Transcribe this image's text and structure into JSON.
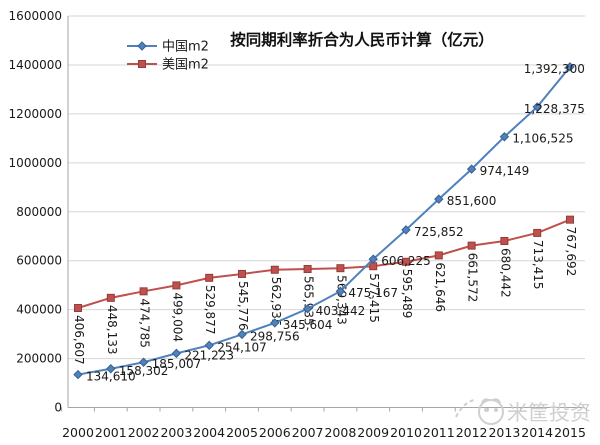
{
  "title": "按同期利率折合为人民币计算（亿元）",
  "watermark": {
    "text": "米筐投资",
    "logo": "panda-face-logo",
    "color": "#cbcbcb"
  },
  "axis": {
    "x_labels": [
      "2000",
      "2001",
      "2002",
      "2003",
      "2004",
      "2005",
      "2006",
      "2007",
      "2008",
      "2009",
      "2010",
      "2011",
      "2012",
      "2013",
      "2014",
      "2015"
    ],
    "y_tick_labels": [
      "0",
      "200000",
      "400000",
      "600000",
      "800000",
      "1000000",
      "1200000",
      "1400000",
      "1600000"
    ]
  },
  "legend": {
    "items": [
      {
        "label": "中国m2"
      },
      {
        "label": "美国m2"
      }
    ]
  },
  "chart_data": {
    "type": "line",
    "x": [
      2000,
      2001,
      2002,
      2003,
      2004,
      2005,
      2006,
      2007,
      2008,
      2009,
      2010,
      2011,
      2012,
      2013,
      2014,
      2015
    ],
    "series": [
      {
        "name": "中国m2",
        "color": "#4F81BD",
        "edge": "#39618f",
        "marker": "diamond",
        "label_orientation": "horizontal",
        "values": [
          134610,
          158302,
          185007,
          221223,
          254107,
          298756,
          345604,
          403442,
          475167,
          606225,
          725852,
          851600,
          974149,
          1106525,
          1228375,
          1392300
        ]
      },
      {
        "name": "美国m2",
        "color": "#C0504D",
        "edge": "#943c3a",
        "marker": "square",
        "label_orientation": "vertical",
        "values": [
          406607,
          448133,
          474785,
          499004,
          529877,
          545776,
          562935,
          565935,
          569343,
          577415,
          595489,
          621646,
          661572,
          680442,
          713415,
          767692
        ]
      }
    ],
    "ylim": [
      0,
      1600000
    ],
    "ytick_interval": 200000,
    "grid": "horizontal",
    "legend_position": "top-left-inside"
  },
  "colors": {
    "gridline": "#d6d6d6",
    "axis": "#a6a6a6",
    "tick_text": "#1a1a1a",
    "label_text": "#1a1a1a"
  }
}
